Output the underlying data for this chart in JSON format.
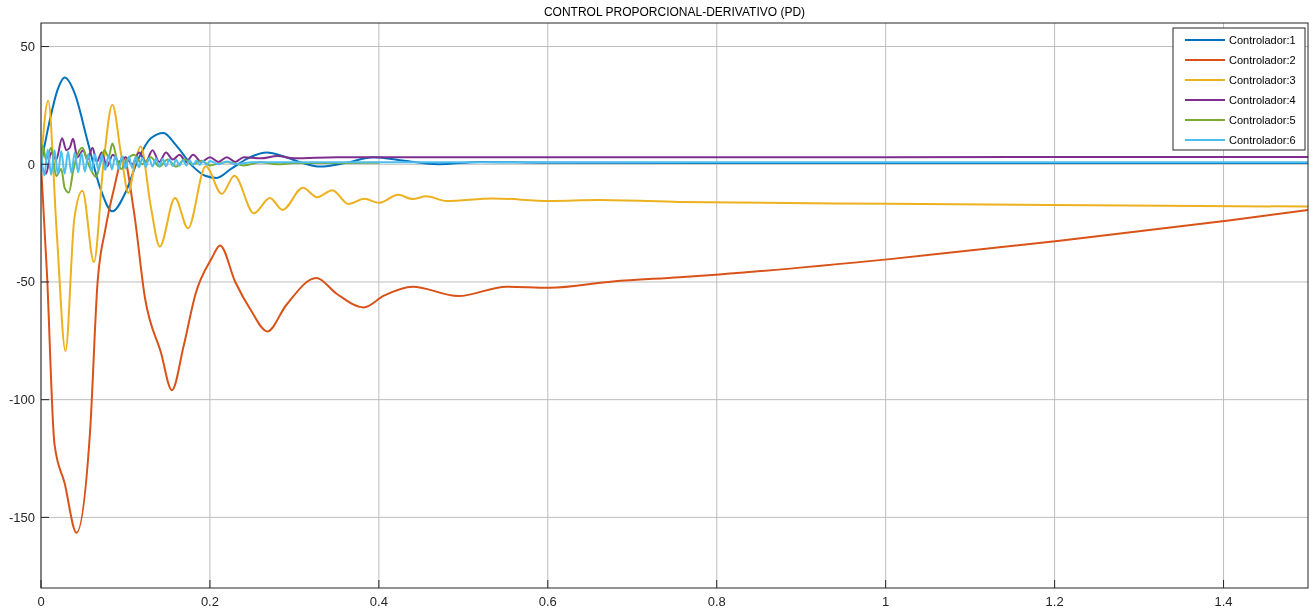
{
  "chart_data": {
    "type": "line",
    "title": "CONTROL PROPORCIONAL-DERIVATIVO (PD)",
    "xlim": [
      0,
      1.5
    ],
    "xticks": [
      0,
      0.2,
      0.4,
      0.6,
      0.8,
      1,
      1.2,
      1.4
    ],
    "ylim": [
      -180,
      60
    ],
    "yticks": [
      -150,
      -100,
      -50,
      0,
      50
    ],
    "grid": true,
    "legend": "top right",
    "line_style": "solid",
    "marker": "none",
    "series": [
      {
        "name": "Controlador:1",
        "color": "#0072bd",
        "x": [
          0,
          0.01,
          0.02,
          0.028,
          0.04,
          0.055,
          0.07,
          0.0845,
          0.1,
          0.115,
          0.13,
          0.145,
          0.16,
          0.18,
          0.195,
          0.208,
          0.225,
          0.245,
          0.267,
          0.29,
          0.31,
          0.331,
          0.36,
          0.394,
          0.43,
          0.47,
          0.52,
          0.6,
          0.8,
          1,
          1.5
        ],
        "values": [
          0,
          18,
          32,
          36.8,
          30,
          10,
          -10,
          -20,
          -12,
          2,
          11,
          13.3,
          8,
          -1,
          -5,
          -5.8,
          -2,
          2.5,
          5,
          3,
          0.5,
          -1,
          0.5,
          3,
          1.5,
          0,
          1,
          0.6,
          0.5,
          0.5,
          0.5
        ]
      },
      {
        "name": "Controlador:2",
        "color": "#d95319",
        "x": [
          0,
          0.007,
          0.016,
          0.028,
          0.042,
          0.058,
          0.067,
          0.076,
          0.086,
          0.0975,
          0.11,
          0.123,
          0.142,
          0.155,
          0.169,
          0.183,
          0.202,
          0.212,
          0.23,
          0.248,
          0.268,
          0.29,
          0.326,
          0.35,
          0.382,
          0.406,
          0.44,
          0.494,
          0.551,
          0.602,
          0.677,
          0.756,
          0.803,
          1.005,
          1.206,
          1.406,
          1.5
        ],
        "values": [
          0,
          -46,
          -119,
          -135.5,
          -156.5,
          -114,
          -50,
          -28,
          -11,
          3,
          -20,
          -56.6,
          -80,
          -96,
          -77,
          -55,
          -40,
          -34.5,
          -50,
          -61.7,
          -71,
          -60,
          -48.3,
          -55,
          -60.8,
          -55.8,
          -52,
          -56,
          -52,
          -52.5,
          -49.8,
          -48,
          -46.8,
          -40.3,
          -32.5,
          -23.9,
          -19.4
        ]
      },
      {
        "name": "Controlador:3",
        "color": "#edb120",
        "x": [
          0,
          0.0085,
          0.0188,
          0.029,
          0.0395,
          0.049,
          0.0627,
          0.074,
          0.0845,
          0.095,
          0.1035,
          0.111,
          0.118,
          0.13,
          0.1406,
          0.1586,
          0.174,
          0.195,
          0.214,
          0.229,
          0.252,
          0.271,
          0.286,
          0.31,
          0.327,
          0.345,
          0.364,
          0.383,
          0.4,
          0.423,
          0.44,
          0.456,
          0.48,
          0.535,
          0.602,
          0.66,
          0.756,
          1.005,
          1.5
        ],
        "values": [
          0,
          27,
          -30,
          -79.3,
          -23,
          -11.3,
          -41.5,
          0.4,
          25.3,
          3.8,
          -12.2,
          0.4,
          7.5,
          -18,
          -35,
          -14.3,
          -27.2,
          -0.9,
          -12.6,
          -4.9,
          -20.8,
          -14.3,
          -19.4,
          -10,
          -14,
          -11,
          -16.9,
          -14.7,
          -16.4,
          -13,
          -14.8,
          -13.6,
          -15.6,
          -14.5,
          -15.6,
          -15.2,
          -16,
          -16.8,
          -18
        ]
      },
      {
        "name": "Controlador:4",
        "color": "#7e2f8e",
        "x": [
          0,
          0.006,
          0.012,
          0.018,
          0.025,
          0.03,
          0.034,
          0.038,
          0.043,
          0.05,
          0.055,
          0.061,
          0.066,
          0.072,
          0.078,
          0.085,
          0.092,
          0.1,
          0.108,
          0.116,
          0.124,
          0.132,
          0.14,
          0.148,
          0.156,
          0.164,
          0.172,
          0.18,
          0.19,
          0.2,
          0.21,
          0.22,
          0.23,
          0.24,
          0.26,
          0.28,
          0.3,
          0.35,
          0.4,
          0.6,
          1,
          1.5
        ],
        "values": [
          0,
          -4,
          5,
          2,
          11,
          6,
          7,
          10.8,
          3,
          6,
          2,
          7,
          1,
          5,
          -1,
          4,
          1,
          3,
          0,
          5,
          1,
          6,
          1,
          5,
          2,
          4,
          1,
          4,
          1,
          3,
          1,
          3,
          1,
          3,
          2.5,
          3.5,
          2.5,
          3,
          3,
          3,
          3,
          3.1
        ]
      },
      {
        "name": "Controlador:5",
        "color": "#77ac30",
        "x": [
          0,
          0.002,
          0.006,
          0.012,
          0.018,
          0.024,
          0.028,
          0.033,
          0.038,
          0.043,
          0.049,
          0.055,
          0.06,
          0.065,
          0.07,
          0.075,
          0.08,
          0.0845,
          0.09,
          0.095,
          0.1,
          0.11,
          0.12,
          0.13,
          0.14,
          0.15,
          0.16,
          0.17,
          0.18,
          0.19,
          0.2,
          0.22,
          0.24,
          0.26,
          0.28,
          0.3,
          0.4
        ],
        "values": [
          0,
          8,
          2,
          7,
          -5,
          -2,
          -10,
          -12,
          -3,
          4,
          7,
          1,
          -3,
          -5.4,
          0,
          6,
          3,
          8.8,
          2,
          -2,
          1,
          4,
          0,
          3,
          -1,
          2,
          -1,
          2,
          0,
          1.5,
          -0.5,
          1,
          -0.5,
          0.8,
          0,
          0.5,
          0.6
        ]
      },
      {
        "name": "Controlador:6",
        "color": "#4dbeee",
        "x": [
          0,
          0.004,
          0.008,
          0.012,
          0.016,
          0.02,
          0.024,
          0.028,
          0.032,
          0.036,
          0.04,
          0.044,
          0.048,
          0.052,
          0.056,
          0.06,
          0.064,
          0.068,
          0.072,
          0.076,
          0.08,
          0.084,
          0.088,
          0.092,
          0.096,
          0.1,
          0.104,
          0.108,
          0.112,
          0.116,
          0.12,
          0.124,
          0.128,
          0.132,
          0.136,
          0.14,
          0.144,
          0.148,
          0.152,
          0.156,
          0.16,
          0.164,
          0.168,
          0.172,
          0.176,
          0.18,
          0.184,
          0.188,
          0.192,
          0.196,
          0.2,
          0.21,
          0.22,
          0.23,
          0.25,
          0.3,
          0.4,
          0.6,
          1,
          1.5
        ],
        "values": [
          6.5,
          -4.8,
          6.2,
          -4.5,
          5.9,
          -4.3,
          5.6,
          -4,
          5.3,
          -3.7,
          5,
          -3.4,
          4.7,
          -3.1,
          4.4,
          -2.9,
          4.2,
          -2.6,
          4,
          -2.4,
          3.8,
          -2.2,
          3.6,
          -2,
          3.4,
          -1.8,
          3.2,
          -1.6,
          3,
          -1.4,
          2.8,
          -1.2,
          2.6,
          -1,
          2.4,
          -0.9,
          2.2,
          -0.8,
          2,
          -0.7,
          1.9,
          -0.6,
          1.8,
          -0.5,
          1.7,
          -0.4,
          1.6,
          -0.3,
          1.5,
          -0.2,
          1.4,
          0,
          1.2,
          0.1,
          0.8,
          0.8,
          0.8,
          0.8,
          0.8,
          0.8
        ]
      }
    ]
  }
}
